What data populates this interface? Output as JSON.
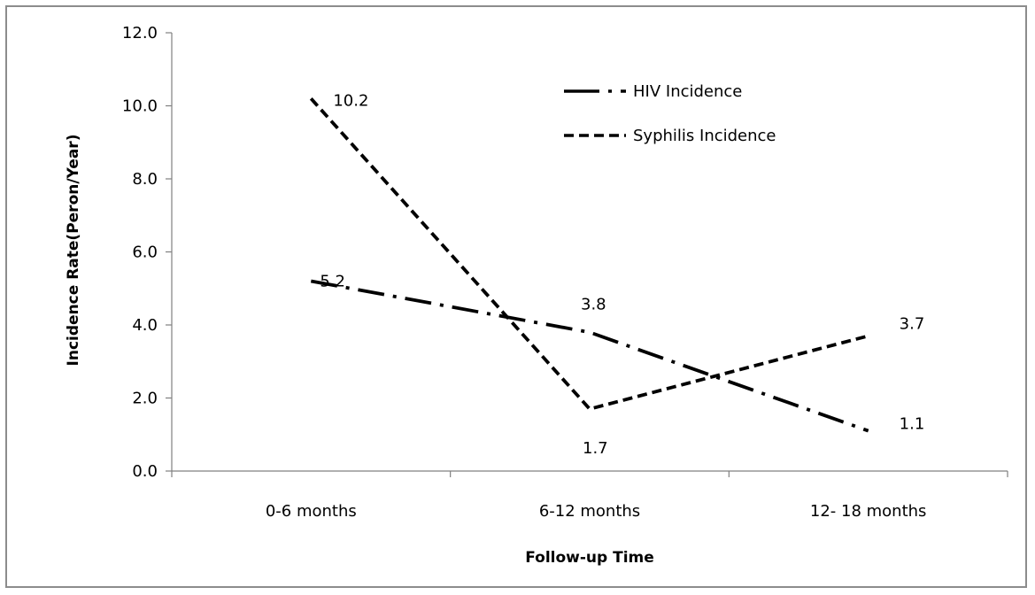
{
  "chart_data": {
    "type": "line",
    "title": "",
    "xlabel": "Follow-up Time",
    "ylabel": "Incidence Rate(Peron/Year)",
    "categories": [
      "0-6 months",
      "6-12 months",
      "12- 18 months"
    ],
    "ylim": [
      0,
      12
    ],
    "ytick_step": 2,
    "ytick_labels": [
      "0.0",
      "2.0",
      "4.0",
      "6.0",
      "8.0",
      "10.0",
      "12.0"
    ],
    "grid": false,
    "legend_position": "top-right",
    "series": [
      {
        "name": "HIV Incidence",
        "values": [
          5.2,
          3.8,
          1.1
        ],
        "data_labels": [
          "5.2",
          "3.8",
          "1.1"
        ],
        "line_style": "dash-dot",
        "color": "#000000"
      },
      {
        "name": "Syphilis Incidence",
        "values": [
          10.2,
          1.7,
          3.7
        ],
        "data_labels": [
          "10.2",
          "1.7",
          "3.7"
        ],
        "line_style": "dashed",
        "color": "#000000"
      }
    ]
  }
}
